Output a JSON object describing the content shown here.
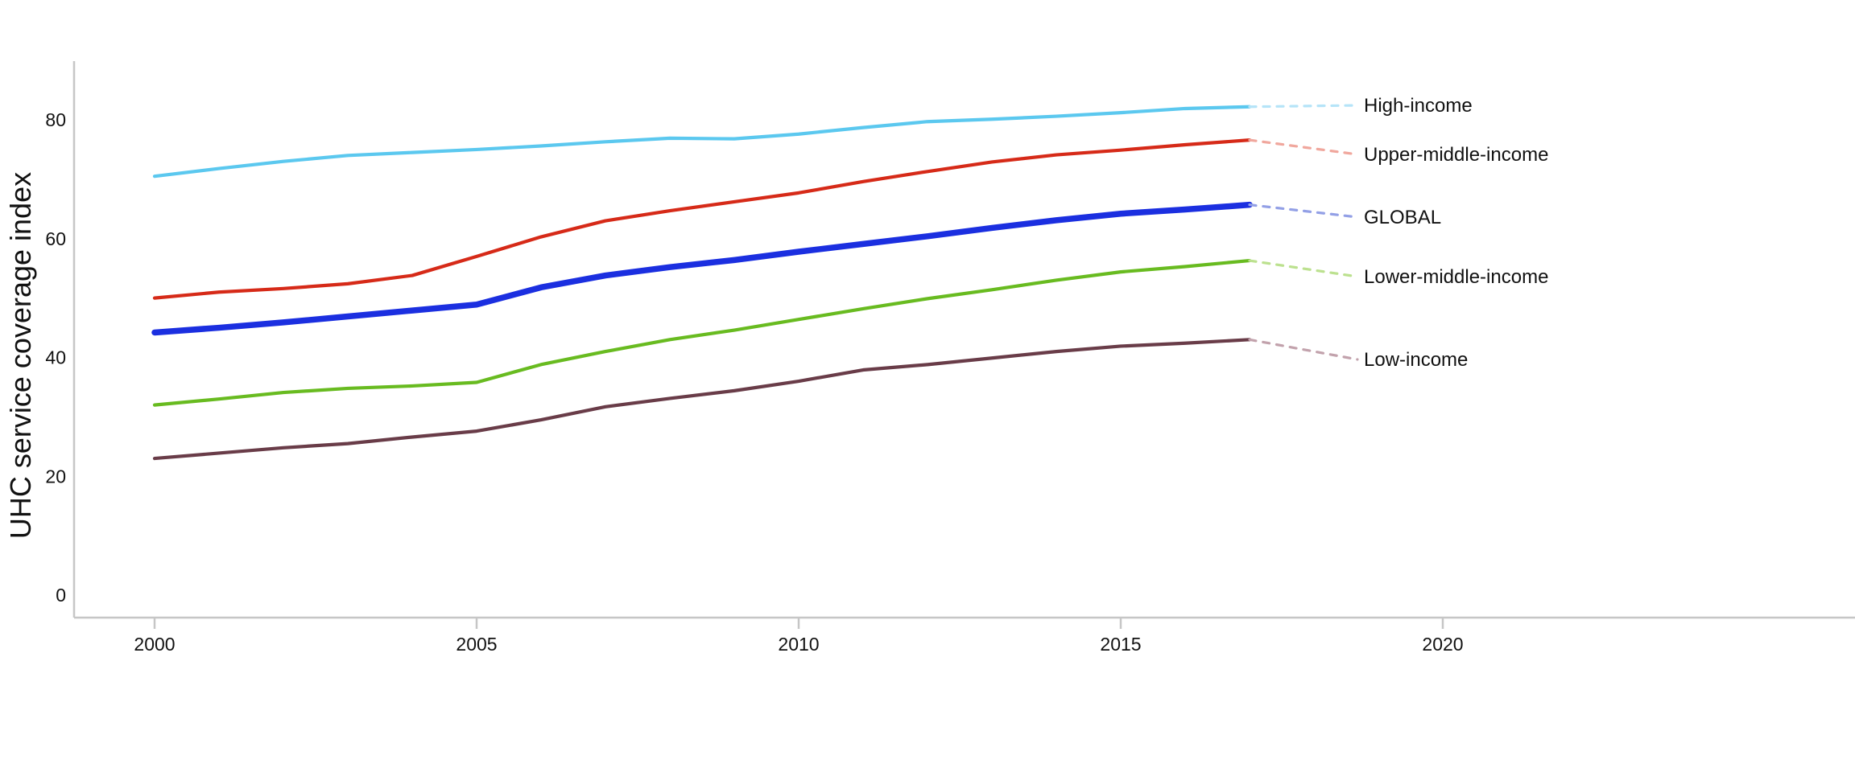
{
  "figure": {
    "background": "#ffffff",
    "axis_color": "#c6c6c6",
    "text_color": "#111111"
  },
  "chart_data": {
    "type": "line",
    "title": "",
    "xlabel": "",
    "ylabel": "UHC service coverage index",
    "grid": false,
    "legend_position": "right-of-line-ends",
    "x_ticks": [
      2000,
      2005,
      2010,
      2015,
      2020
    ],
    "y_ticks": [
      0,
      20,
      40,
      60,
      80
    ],
    "xlim": [
      1998.7,
      2026.4
    ],
    "ylim": [
      -3.8,
      90
    ],
    "x": [
      2000,
      2001,
      2002,
      2003,
      2004,
      2005,
      2006,
      2007,
      2008,
      2009,
      2010,
      2011,
      2012,
      2013,
      2014,
      2015,
      2016,
      2017
    ],
    "series": [
      {
        "name": "High-income",
        "color": "#5bc8ef",
        "leader_color": "#b5e4f8",
        "line_width": 4.2,
        "values": [
          70.5,
          71.8,
          73.0,
          74.0,
          74.5,
          75.0,
          75.6,
          76.3,
          76.9,
          76.8,
          77.6,
          78.7,
          79.7,
          80.1,
          80.6,
          81.2,
          81.9,
          82.2
        ]
      },
      {
        "name": "Upper-middle-income",
        "color": "#d62a18",
        "leader_color": "#f0a79d",
        "line_width": 4.2,
        "values": [
          50.0,
          51.0,
          51.6,
          52.4,
          53.8,
          57.0,
          60.3,
          63.0,
          64.7,
          66.2,
          67.7,
          69.6,
          71.3,
          72.9,
          74.1,
          74.9,
          75.8,
          76.6
        ]
      },
      {
        "name": "GLOBAL",
        "color": "#1b2fe0",
        "leader_color": "#93a0e6",
        "line_width": 7.5,
        "values": [
          44.2,
          45.0,
          45.9,
          46.9,
          47.9,
          48.9,
          51.8,
          53.8,
          55.2,
          56.4,
          57.8,
          59.1,
          60.4,
          61.8,
          63.1,
          64.2,
          64.9,
          65.7
        ]
      },
      {
        "name": "Lower-middle-income",
        "color": "#68bb20",
        "leader_color": "#bce18f",
        "line_width": 4.2,
        "values": [
          32.0,
          33.0,
          34.1,
          34.8,
          35.2,
          35.8,
          38.8,
          41.0,
          43.0,
          44.6,
          46.4,
          48.2,
          49.9,
          51.4,
          53.0,
          54.4,
          55.3,
          56.3
        ]
      },
      {
        "name": "Low-income",
        "color": "#693c48",
        "leader_color": "#c2a2ac",
        "line_width": 4.2,
        "values": [
          23.0,
          23.9,
          24.8,
          25.5,
          26.6,
          27.6,
          29.5,
          31.7,
          33.1,
          34.4,
          36.0,
          37.9,
          38.8,
          39.9,
          41.0,
          41.9,
          42.4,
          43.0
        ]
      }
    ]
  }
}
